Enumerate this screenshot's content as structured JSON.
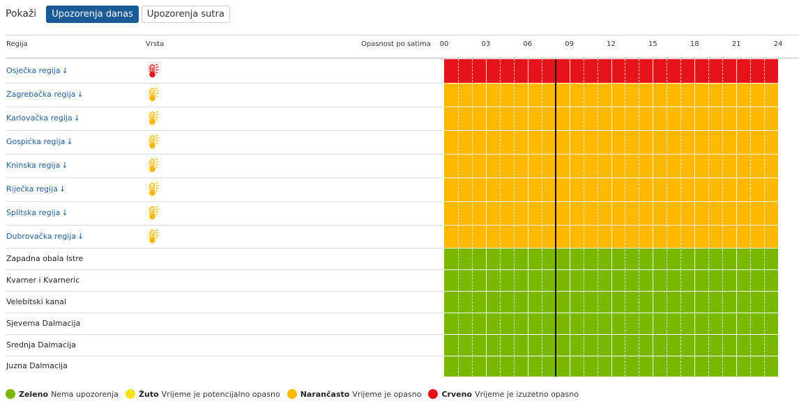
{
  "toolbar": {
    "label": "Pokaži",
    "tab_today": "Upozorenja danas",
    "tab_tomorrow": "Upozorenja sutra"
  },
  "table": {
    "col_region": "Regija",
    "col_type": "Vrsta",
    "col_hours": "Opasnost po satima",
    "hour_ticks": [
      "00",
      "03",
      "06",
      "09",
      "12",
      "15",
      "18",
      "21",
      "24"
    ],
    "current_time_hour": 8
  },
  "rows": [
    {
      "name": "Osječka regija",
      "link": true,
      "icon": "thermometer-heat-icon",
      "level": "red"
    },
    {
      "name": "Zagrebačka regija",
      "link": true,
      "icon": "thermometer-heat-icon",
      "level": "orange"
    },
    {
      "name": "Karlovačka regija",
      "link": true,
      "icon": "thermometer-heat-icon",
      "level": "orange"
    },
    {
      "name": "Gospićka regija",
      "link": true,
      "icon": "thermometer-heat-icon",
      "level": "orange"
    },
    {
      "name": "Kninska regija",
      "link": true,
      "icon": "thermometer-heat-icon",
      "level": "orange"
    },
    {
      "name": "Riječka regija",
      "link": true,
      "icon": "thermometer-heat-icon",
      "level": "orange"
    },
    {
      "name": "Splitska regija",
      "link": true,
      "icon": "thermometer-heat-icon",
      "level": "orange"
    },
    {
      "name": "Dubrovačka regija",
      "link": true,
      "icon": "thermometer-heat-icon",
      "level": "orange"
    },
    {
      "name": "Zapadna obala Istre",
      "link": false,
      "icon": "",
      "level": "green"
    },
    {
      "name": "Kvarner i Kvarneric",
      "link": false,
      "icon": "",
      "level": "green"
    },
    {
      "name": "Velebitski kanal",
      "link": false,
      "icon": "",
      "level": "green"
    },
    {
      "name": "Sjeverna Dalmacija",
      "link": false,
      "icon": "",
      "level": "green"
    },
    {
      "name": "Srednja Dalmacija",
      "link": false,
      "icon": "",
      "level": "green"
    },
    {
      "name": "Juzna Dalmacija",
      "link": false,
      "icon": "",
      "level": "green"
    }
  ],
  "colors": {
    "green": "#7ab800",
    "yellow": "#f7e11a",
    "orange": "#ffb900",
    "red": "#e4141a",
    "accent": "#1a5a96",
    "link": "#1f5e96"
  },
  "legend": [
    {
      "color": "green",
      "title": "Zeleno",
      "desc": "Nema upozorenja"
    },
    {
      "color": "yellow",
      "title": "Žuto",
      "desc": "Vrijeme je potencijalno opasno"
    },
    {
      "color": "orange",
      "title": "Narančasto",
      "desc": "Vrijeme je opasno"
    },
    {
      "color": "red",
      "title": "Crveno",
      "desc": "Vrijeme je izuzetno opasno"
    }
  ]
}
